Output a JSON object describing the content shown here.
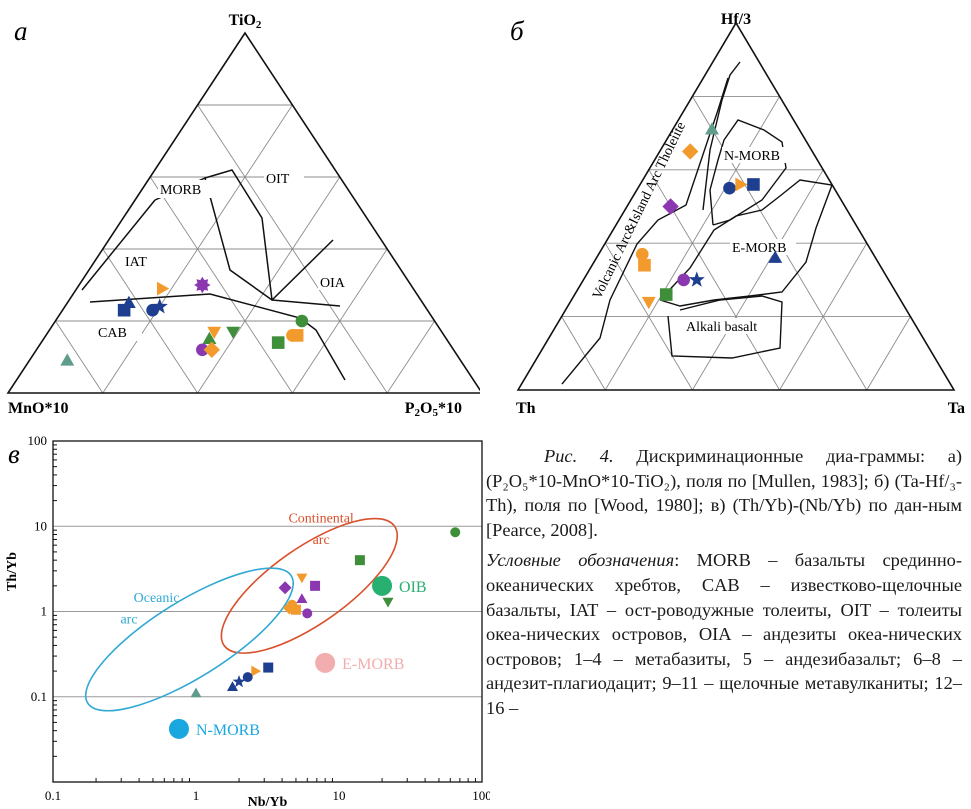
{
  "panels": {
    "a": {
      "letter": "а",
      "vertices": {
        "top": "TiO₂",
        "left": "MnO*10",
        "right": "P₂O₅*10"
      },
      "fields": {
        "morb": "MORB",
        "oit": "OIT",
        "iat": "IAT",
        "oia": "OIA",
        "cab": "CAB"
      }
    },
    "b": {
      "letter": "б",
      "vertices": {
        "top": "Hf/3",
        "left": "Th",
        "right": "Ta"
      },
      "fields": {
        "nmorb": "N-MORB",
        "emorb": "E-MORB",
        "alkali": "Alkali basalt",
        "arc": "Volcanic Arc&Island Arc Tholeiite"
      }
    },
    "c": {
      "letter": "в"
    }
  },
  "colors": {
    "orange": "#f39a2c",
    "green": "#3e8e3a",
    "navy": "#1e3f8f",
    "purple": "#8a37b0",
    "teal": "#5f9c8c",
    "continental": "#d9512c",
    "oceanic": "#30a9d4",
    "oib": "#27b070",
    "emorb": "#f2aeae",
    "nmorb": "#1aa7e0",
    "grid": "#8c8c8c"
  },
  "ternary_a": {
    "components": [
      "MnO*10",
      "TiO2",
      "P2O5*10"
    ],
    "points": [
      {
        "shape": "square",
        "color": "navy",
        "t": [
          0.64,
          0.23,
          0.13
        ]
      },
      {
        "shape": "triangle",
        "color": "navy",
        "t": [
          0.62,
          0.25,
          0.13
        ]
      },
      {
        "shape": "circle",
        "color": "navy",
        "t": [
          0.58,
          0.23,
          0.19
        ]
      },
      {
        "shape": "star",
        "color": "navy",
        "t": [
          0.56,
          0.24,
          0.2
        ]
      },
      {
        "shape": "triangle-right",
        "color": "orange",
        "t": [
          0.53,
          0.29,
          0.18
        ]
      },
      {
        "shape": "burst",
        "color": "purple",
        "t": [
          0.44,
          0.3,
          0.26
        ]
      },
      {
        "shape": "triangle-down",
        "color": "orange",
        "t": [
          0.48,
          0.17,
          0.35
        ]
      },
      {
        "shape": "triangle-down",
        "color": "green",
        "t": [
          0.44,
          0.17,
          0.39
        ]
      },
      {
        "shape": "triangle",
        "color": "green",
        "t": [
          0.5,
          0.15,
          0.35
        ]
      },
      {
        "shape": "circle",
        "color": "purple",
        "t": [
          0.53,
          0.12,
          0.35
        ]
      },
      {
        "shape": "diamond",
        "color": "orange",
        "t": [
          0.51,
          0.12,
          0.37
        ]
      },
      {
        "shape": "circle",
        "color": "green",
        "t": [
          0.28,
          0.2,
          0.52
        ]
      },
      {
        "shape": "circle",
        "color": "orange",
        "t": [
          0.32,
          0.16,
          0.52
        ]
      },
      {
        "shape": "square",
        "color": "orange",
        "t": [
          0.31,
          0.16,
          0.53
        ]
      },
      {
        "shape": "square",
        "color": "green",
        "t": [
          0.36,
          0.14,
          0.5
        ]
      },
      {
        "shape": "triangle",
        "color": "teal",
        "t": [
          0.83,
          0.09,
          0.08
        ]
      }
    ]
  },
  "ternary_b": {
    "components": [
      "Th",
      "Hf/3",
      "Ta"
    ],
    "points": [
      {
        "shape": "diamond",
        "color": "orange",
        "t": [
          0.28,
          0.65,
          0.07
        ]
      },
      {
        "shape": "triangle",
        "color": "teal",
        "t": [
          0.2,
          0.71,
          0.09
        ]
      },
      {
        "shape": "diamond",
        "color": "purple",
        "t": [
          0.4,
          0.5,
          0.1
        ]
      },
      {
        "shape": "circle",
        "color": "navy",
        "t": [
          0.24,
          0.55,
          0.21
        ]
      },
      {
        "shape": "triangle-right",
        "color": "orange",
        "t": [
          0.21,
          0.56,
          0.23
        ]
      },
      {
        "shape": "square",
        "color": "navy",
        "t": [
          0.18,
          0.56,
          0.26
        ]
      },
      {
        "shape": "triangle",
        "color": "navy",
        "t": [
          0.23,
          0.36,
          0.41
        ]
      },
      {
        "shape": "circle",
        "color": "orange",
        "t": [
          0.53,
          0.37,
          0.1
        ]
      },
      {
        "shape": "square",
        "color": "orange",
        "t": [
          0.54,
          0.34,
          0.12
        ]
      },
      {
        "shape": "circle",
        "color": "purple",
        "t": [
          0.47,
          0.3,
          0.23
        ]
      },
      {
        "shape": "star",
        "color": "navy",
        "t": [
          0.44,
          0.3,
          0.26
        ]
      },
      {
        "shape": "square",
        "color": "green",
        "t": [
          0.53,
          0.26,
          0.21
        ]
      },
      {
        "shape": "triangle-down",
        "color": "orange",
        "t": [
          0.58,
          0.24,
          0.18
        ]
      }
    ]
  },
  "chart_data": {
    "type": "scatter",
    "title": "",
    "xlabel": "Nb/Yb",
    "ylabel": "Th/Yb",
    "xscale": "log",
    "yscale": "log",
    "xlim": [
      0.1,
      100
    ],
    "ylim": [
      0.01,
      100
    ],
    "xticks": [
      "0.1",
      "1",
      "10",
      "100"
    ],
    "yticks": [
      "0.1",
      "1",
      "10",
      "100"
    ],
    "grid": "horizontal at decades",
    "fields": [
      {
        "name": "Continental arc",
        "label1": "Continental",
        "label2": "arc",
        "color": "continental"
      },
      {
        "name": "Oceanic arc",
        "label1": "Oceanic",
        "label2": "arc",
        "color": "oceanic"
      }
    ],
    "references": [
      {
        "name": "OIB",
        "x": 20,
        "y": 2.0,
        "color": "oib"
      },
      {
        "name": "E-MORB",
        "x": 8,
        "y": 0.25,
        "color": "emorb"
      },
      {
        "name": "N-MORB",
        "x": 0.76,
        "y": 0.042,
        "color": "nmorb"
      }
    ],
    "points": [
      {
        "x": 65,
        "y": 8.5,
        "shape": "circle",
        "color": "green"
      },
      {
        "x": 14,
        "y": 4.0,
        "shape": "square",
        "color": "green"
      },
      {
        "x": 22,
        "y": 1.3,
        "shape": "triangle-down",
        "color": "green"
      },
      {
        "x": 4.2,
        "y": 1.9,
        "shape": "diamond",
        "color": "purple"
      },
      {
        "x": 5.5,
        "y": 2.5,
        "shape": "triangle-down",
        "color": "orange"
      },
      {
        "x": 6.8,
        "y": 2.0,
        "shape": "square",
        "color": "purple"
      },
      {
        "x": 4.5,
        "y": 1.1,
        "shape": "diamond",
        "color": "orange"
      },
      {
        "x": 5.0,
        "y": 1.05,
        "shape": "square",
        "color": "orange"
      },
      {
        "x": 4.7,
        "y": 1.2,
        "shape": "circle",
        "color": "orange"
      },
      {
        "x": 5.5,
        "y": 1.4,
        "shape": "triangle",
        "color": "purple"
      },
      {
        "x": 6.0,
        "y": 0.95,
        "shape": "circle",
        "color": "purple"
      },
      {
        "x": 3.2,
        "y": 0.22,
        "shape": "square",
        "color": "navy"
      },
      {
        "x": 2.6,
        "y": 0.2,
        "shape": "triangle-right",
        "color": "orange"
      },
      {
        "x": 2.3,
        "y": 0.17,
        "shape": "circle",
        "color": "navy"
      },
      {
        "x": 2.0,
        "y": 0.15,
        "shape": "star",
        "color": "navy"
      },
      {
        "x": 1.8,
        "y": 0.13,
        "shape": "triangle",
        "color": "navy"
      },
      {
        "x": 1.0,
        "y": 0.11,
        "shape": "triangle",
        "color": "teal"
      }
    ]
  },
  "caption": {
    "fig_label": "Рис. 4.",
    "line1": "Дискриминационные диа-граммы: а) (P₂O₅*10-MnO*10-TiO₂), поля по [Mullen, 1983]; б) (Ta-Hf/₃-Th), поля по [Wood, 1980]; в) (Th/Yb)-(Nb/Yb) по дан-ным [Pearce, 2008].",
    "legend_title": "Условные обозначения",
    "legend_text": ": MORB – базальты срединно-океанических хребтов, CAB – известково-щелочные базальты, IAT – ост-роводужные толеиты, OIT – толеиты океа-нических островов, OIA – андезиты океа-нических островов; 1–4 – метабазиты, 5 – андезибазальт; 6–8 – андезит-плагиодацит; 9–11 – щелочные метавулканиты; 12–16 –"
  }
}
